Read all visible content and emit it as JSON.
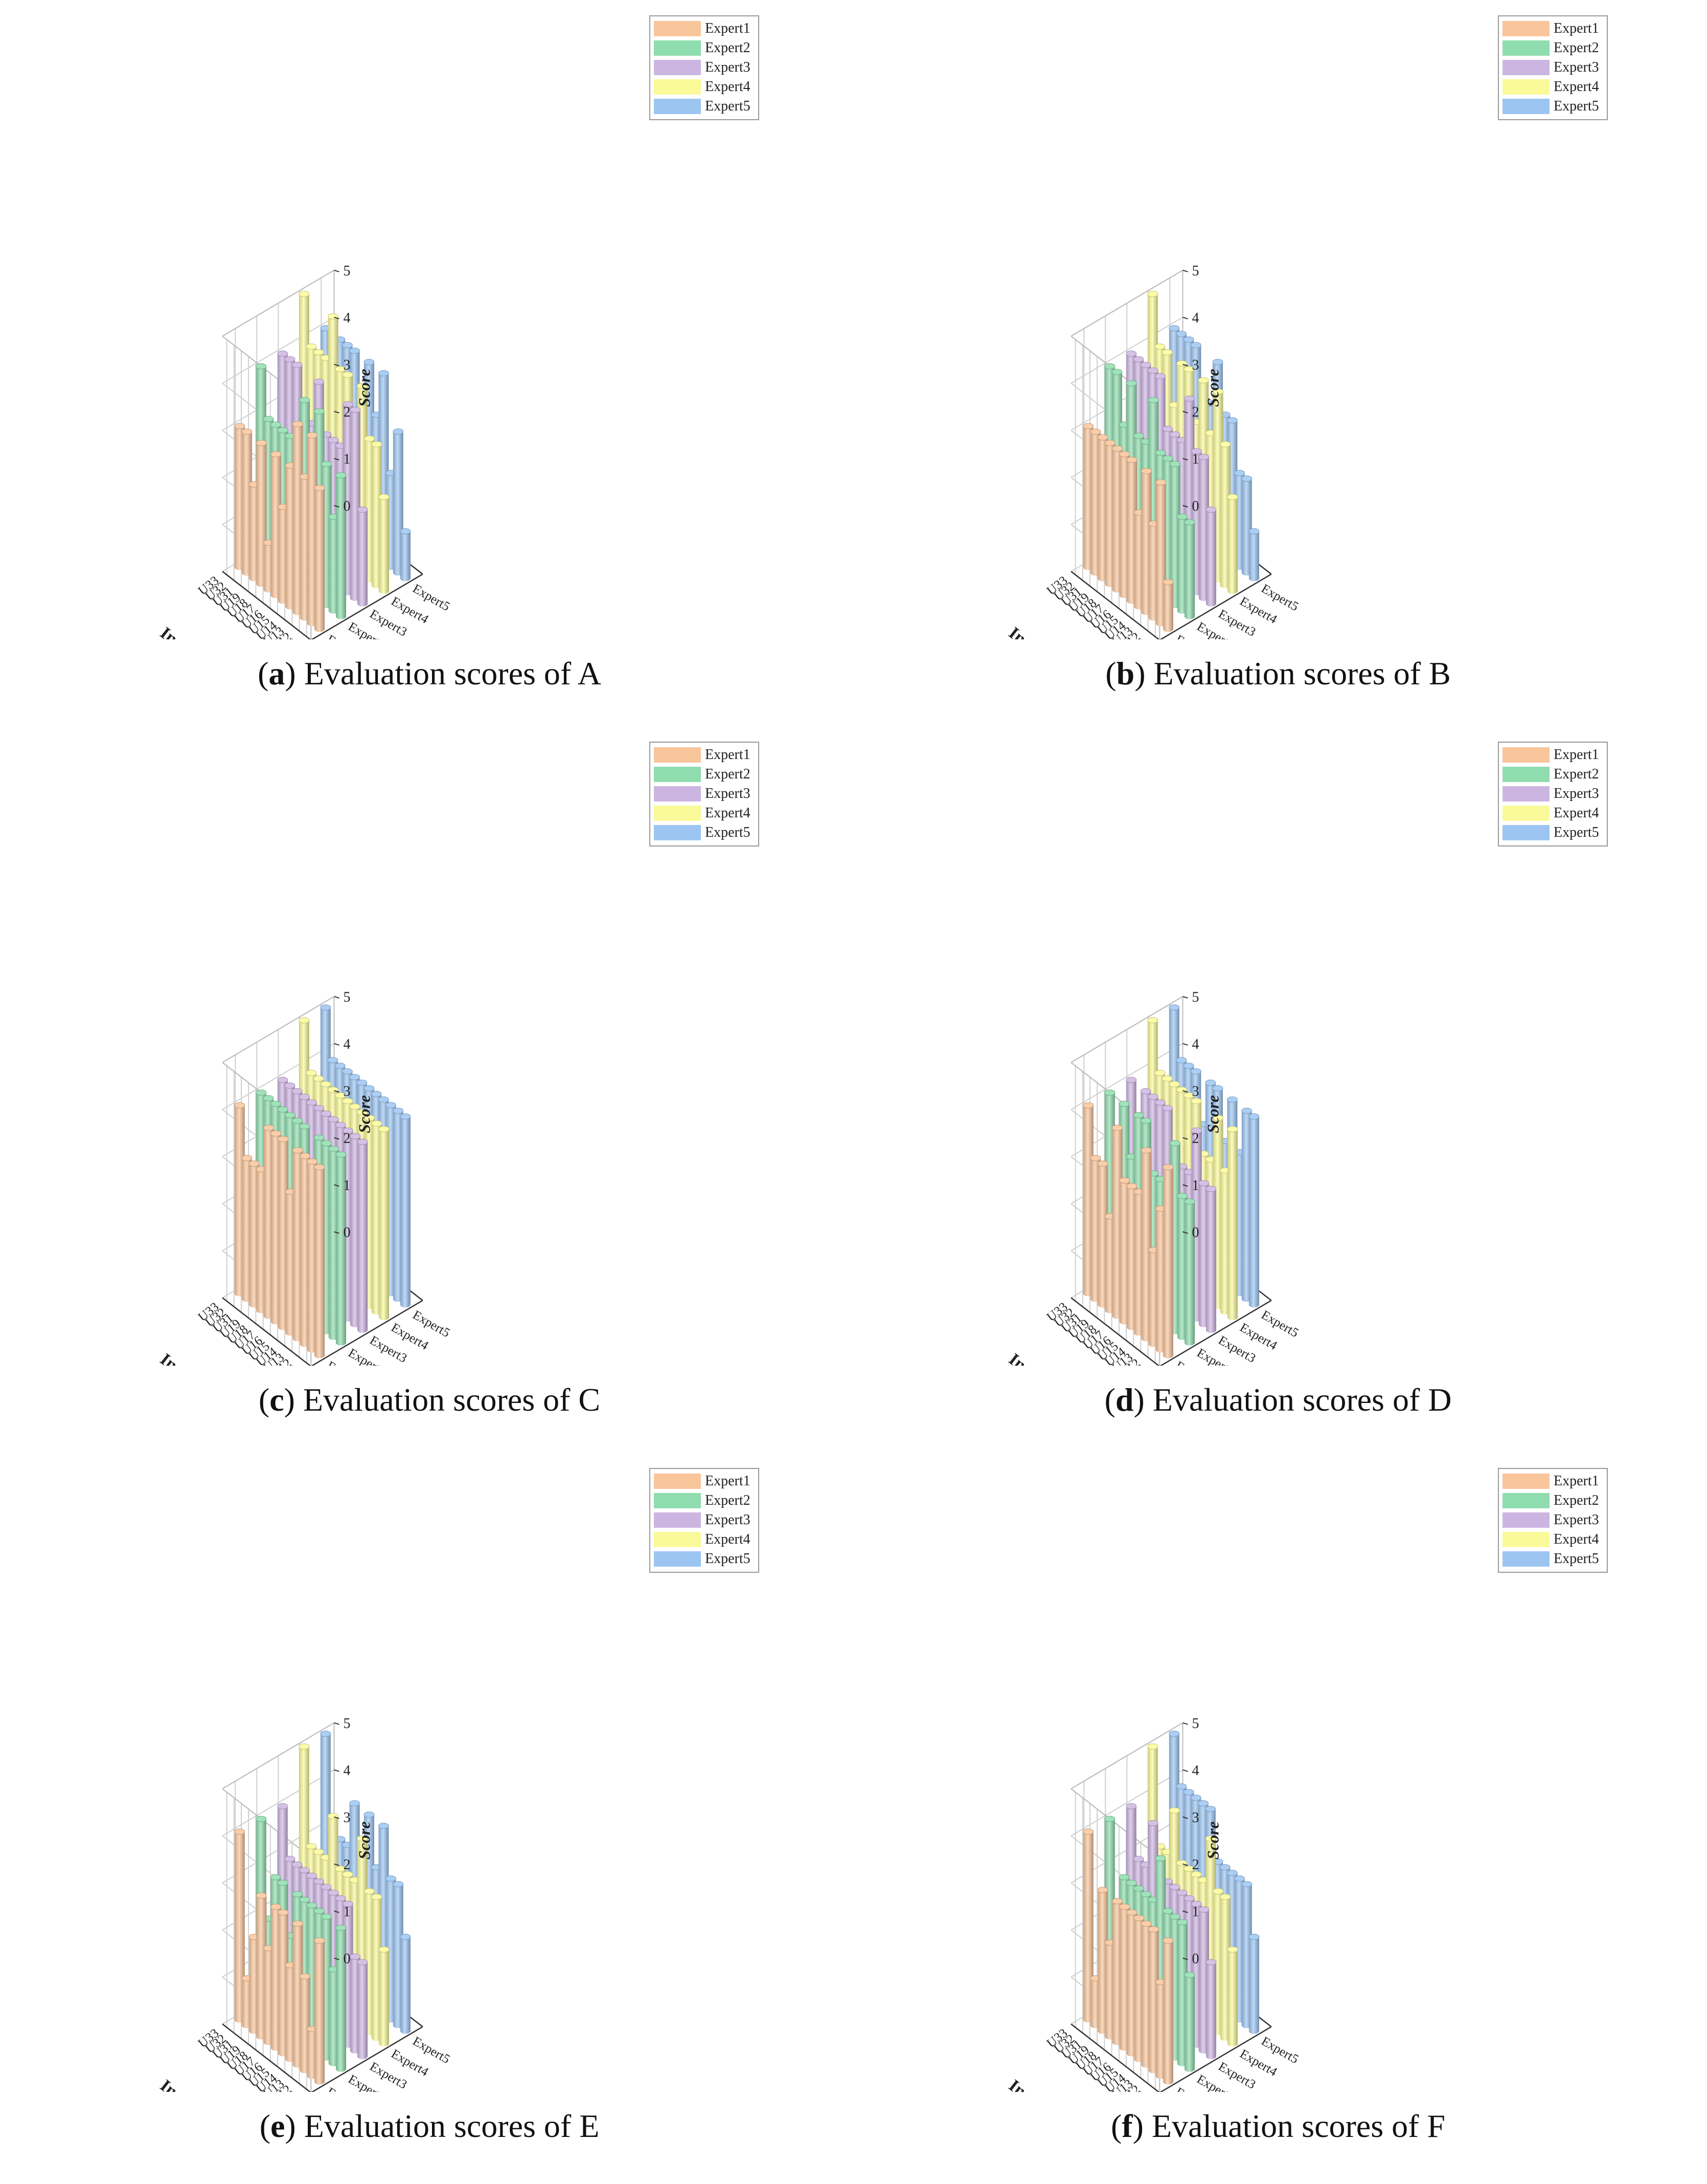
{
  "chart_data": [
    {
      "panel_letter": "a",
      "title": "Evaluation scores of A",
      "type": "bar3d",
      "ylabel": "Indicator",
      "zlabel": "Score",
      "zlim": [
        0,
        5
      ],
      "z_ticks": [
        "0",
        "1",
        "2",
        "3",
        "4",
        "5"
      ],
      "indicators": [
        "U11",
        "U12",
        "U13",
        "U14",
        "U15",
        "U16",
        "U17",
        "U18",
        "U19",
        "U31",
        "U32",
        "U33"
      ],
      "series": [
        {
          "name": "Expert1",
          "values": [
            3,
            4,
            3,
            4,
            3,
            2,
            3,
            1,
            3,
            2,
            3,
            3
          ]
        },
        {
          "name": "Expert2",
          "values": [
            3,
            2,
            3,
            4,
            2,
            4,
            3,
            3,
            3,
            3,
            3,
            4
          ]
        },
        {
          "name": "Expert3",
          "values": [
            2,
            4,
            4,
            3,
            3,
            3,
            4,
            3,
            3,
            4,
            4,
            4
          ]
        },
        {
          "name": "Expert4",
          "values": [
            2,
            3,
            3,
            4,
            3,
            4,
            4,
            5,
            4,
            4,
            4,
            5
          ]
        },
        {
          "name": "Expert5",
          "values": [
            1,
            3,
            2,
            4,
            3,
            4,
            3,
            4,
            4,
            4,
            4,
            4
          ]
        }
      ]
    },
    {
      "panel_letter": "b",
      "title": "Evaluation scores of B",
      "type": "bar3d",
      "ylabel": "Indicator",
      "zlabel": "Score",
      "zlim": [
        0,
        5
      ],
      "z_ticks": [
        "0",
        "1",
        "2",
        "3",
        "4",
        "5"
      ],
      "indicators": [
        "U11",
        "U12",
        "U13",
        "U14",
        "U15",
        "U16",
        "U17",
        "U18",
        "U19",
        "U31",
        "U32",
        "U33"
      ],
      "series": [
        {
          "name": "Expert1",
          "values": [
            1,
            3,
            2,
            3,
            2,
            3,
            3,
            3,
            3,
            3,
            3,
            3
          ]
        },
        {
          "name": "Expert2",
          "values": [
            2,
            2,
            3,
            3,
            3,
            4,
            3,
            3,
            4,
            3,
            4,
            4
          ]
        },
        {
          "name": "Expert3",
          "values": [
            2,
            3,
            3,
            4,
            3,
            3,
            3,
            4,
            4,
            4,
            4,
            4
          ]
        },
        {
          "name": "Expert4",
          "values": [
            2,
            3,
            4,
            3,
            4,
            3,
            4,
            4,
            3,
            4,
            4,
            5
          ]
        },
        {
          "name": "Expert5",
          "values": [
            1,
            2,
            2,
            3,
            3,
            4,
            3,
            3,
            4,
            4,
            4,
            4
          ]
        }
      ]
    },
    {
      "panel_letter": "c",
      "title": "Evaluation scores of C",
      "type": "bar3d",
      "ylabel": "Indicator",
      "zlabel": "Score",
      "zlim": [
        0,
        5
      ],
      "z_ticks": [
        "0",
        "1",
        "2",
        "3",
        "4",
        "5"
      ],
      "indicators": [
        "U11",
        "U12",
        "U13",
        "U14",
        "U15",
        "U16",
        "U17",
        "U18",
        "U19",
        "U31",
        "U32",
        "U33"
      ],
      "series": [
        {
          "name": "Expert1",
          "values": [
            4,
            4,
            4,
            4,
            3,
            4,
            4,
            4,
            3,
            3,
            3,
            4
          ]
        },
        {
          "name": "Expert2",
          "values": [
            4,
            4,
            4,
            4,
            3,
            4,
            4,
            4,
            4,
            4,
            4,
            4
          ]
        },
        {
          "name": "Expert3",
          "values": [
            4,
            4,
            4,
            4,
            4,
            4,
            4,
            4,
            4,
            4,
            4,
            4
          ]
        },
        {
          "name": "Expert4",
          "values": [
            4,
            4,
            4,
            4,
            4,
            4,
            4,
            4,
            4,
            4,
            4,
            5
          ]
        },
        {
          "name": "Expert5",
          "values": [
            4,
            4,
            4,
            4,
            4,
            4,
            4,
            4,
            4,
            4,
            4,
            5
          ]
        }
      ]
    },
    {
      "panel_letter": "d",
      "title": "Evaluation scores of D",
      "type": "bar3d",
      "ylabel": "Indicator",
      "zlabel": "Score",
      "zlim": [
        0,
        5
      ],
      "z_ticks": [
        "0",
        "1",
        "2",
        "3",
        "4",
        "5"
      ],
      "indicators": [
        "U11",
        "U12",
        "U13",
        "U14",
        "U15",
        "U16",
        "U17",
        "U18",
        "U19",
        "U31",
        "U32",
        "U33"
      ],
      "series": [
        {
          "name": "Expert1",
          "values": [
            4,
            3,
            2,
            4,
            3,
            3,
            3,
            4,
            2,
            3,
            3,
            4
          ]
        },
        {
          "name": "Expert2",
          "values": [
            3,
            3,
            4,
            3,
            3,
            3,
            4,
            4,
            3,
            4,
            3,
            4
          ]
        },
        {
          "name": "Expert3",
          "values": [
            3,
            3,
            4,
            3,
            3,
            3,
            4,
            4,
            4,
            4,
            3,
            4
          ]
        },
        {
          "name": "Expert4",
          "values": [
            4,
            3,
            4,
            3,
            3,
            4,
            4,
            4,
            4,
            4,
            4,
            5
          ]
        },
        {
          "name": "Expert5",
          "values": [
            4,
            4,
            3,
            4,
            3,
            4,
            4,
            3,
            4,
            4,
            4,
            5
          ]
        }
      ]
    },
    {
      "panel_letter": "e",
      "title": "Evaluation scores of E",
      "type": "bar3d",
      "ylabel": "Indicator",
      "zlabel": "Score",
      "zlim": [
        0,
        5
      ],
      "z_ticks": [
        "0",
        "1",
        "2",
        "3",
        "4",
        "5"
      ],
      "indicators": [
        "U11",
        "U12",
        "U13",
        "U14",
        "U15",
        "U16",
        "U17",
        "U18",
        "U19",
        "U31",
        "U32",
        "U33"
      ],
      "series": [
        {
          "name": "Expert1",
          "values": [
            3,
            1,
            2,
            3,
            2,
            3,
            3,
            2,
            3,
            2,
            1,
            4
          ]
        },
        {
          "name": "Expert2",
          "values": [
            3,
            2,
            3,
            3,
            3,
            3,
            3,
            2,
            3,
            3,
            2,
            4
          ]
        },
        {
          "name": "Expert3",
          "values": [
            2,
            2,
            3,
            3,
            3,
            3,
            3,
            3,
            3,
            3,
            3,
            4
          ]
        },
        {
          "name": "Expert4",
          "values": [
            2,
            3,
            3,
            4,
            3,
            3,
            3,
            4,
            3,
            3,
            3,
            5
          ]
        },
        {
          "name": "Expert5",
          "values": [
            2,
            3,
            3,
            4,
            3,
            4,
            3,
            4,
            3,
            3,
            3,
            5
          ]
        }
      ]
    },
    {
      "panel_letter": "f",
      "title": "Evaluation scores of F",
      "type": "bar3d",
      "ylabel": "Indicator",
      "zlabel": "Score",
      "zlim": [
        0,
        5
      ],
      "z_ticks": [
        "0",
        "1",
        "2",
        "3",
        "4",
        "5"
      ],
      "indicators": [
        "U11",
        "U12",
        "U13",
        "U14",
        "U15",
        "U16",
        "U17",
        "U18",
        "U19",
        "U31",
        "U32",
        "U33"
      ],
      "series": [
        {
          "name": "Expert1",
          "values": [
            3,
            2,
            3,
            3,
            3,
            3,
            3,
            3,
            2,
            3,
            1,
            4
          ]
        },
        {
          "name": "Expert2",
          "values": [
            2,
            3,
            3,
            3,
            4,
            3,
            3,
            3,
            3,
            3,
            2,
            4
          ]
        },
        {
          "name": "Expert3",
          "values": [
            2,
            3,
            3,
            3,
            3,
            3,
            3,
            3,
            4,
            3,
            3,
            4
          ]
        },
        {
          "name": "Expert4",
          "values": [
            2,
            3,
            3,
            4,
            3,
            3,
            3,
            3,
            4,
            3,
            3,
            5
          ]
        },
        {
          "name": "Expert5",
          "values": [
            2,
            3,
            3,
            3,
            3,
            3,
            4,
            4,
            4,
            4,
            4,
            5
          ]
        }
      ]
    }
  ],
  "colors": {
    "Expert1": "#F9C59B",
    "Expert2": "#8FDDAE",
    "Expert3": "#CDB5E2",
    "Expert4": "#FAFA9A",
    "Expert5": "#9CC5F2",
    "grid": "#CFCFCF",
    "axis": "#333333"
  }
}
